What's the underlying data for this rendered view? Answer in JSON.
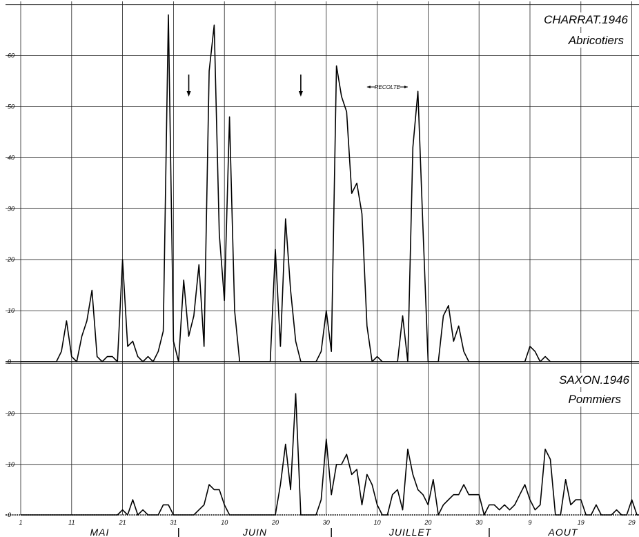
{
  "chart_data": [
    {
      "type": "line",
      "title": "CHARRAT.1946",
      "subtitle": "Abricotiers",
      "x_start": 1,
      "x_tick_labels": [
        "1",
        "11",
        "21",
        "31",
        "10",
        "20",
        "30",
        "10",
        "20",
        "30",
        "9",
        "19",
        "29"
      ],
      "months": [
        "MAI",
        "JUIN",
        "JUILLET",
        "AOUT"
      ],
      "y_ticks": [
        0,
        10,
        20,
        30,
        40,
        50,
        60
      ],
      "ylim": [
        0,
        70
      ],
      "grid": true,
      "annotations": {
        "arrow_days": [
          34,
          56
        ],
        "harvest_label": "RECOLTE",
        "harvest_range": [
          69,
          77
        ]
      },
      "values": [
        0,
        0,
        0,
        0,
        0,
        0,
        0,
        0,
        2,
        8,
        1,
        0,
        5,
        8,
        14,
        1,
        0,
        1,
        1,
        0,
        20,
        3,
        4,
        1,
        0,
        1,
        0,
        2,
        6,
        68,
        4,
        0,
        16,
        5,
        9,
        19,
        3,
        57,
        66,
        25,
        12,
        48,
        10,
        0,
        0,
        0,
        0,
        0,
        0,
        0,
        22,
        3,
        28,
        14,
        4,
        0,
        0,
        0,
        0,
        2,
        10,
        2,
        58,
        52,
        49,
        33,
        35,
        29,
        7,
        0,
        1,
        0,
        0,
        0,
        0,
        9,
        0,
        42,
        53,
        26,
        0,
        0,
        0,
        9,
        11,
        4,
        7,
        2,
        0,
        0,
        0,
        0,
        0,
        0,
        0,
        0,
        0,
        0,
        0,
        0,
        3,
        2,
        0,
        1,
        0,
        0,
        0,
        0,
        0,
        0,
        0,
        0,
        0,
        0,
        0,
        0,
        0,
        0,
        0,
        0,
        0
      ]
    },
    {
      "type": "line",
      "title": "SAXON.1946",
      "subtitle": "Pommiers",
      "x_start": 1,
      "x_tick_labels": [
        "1",
        "11",
        "21",
        "31",
        "10",
        "20",
        "30",
        "10",
        "20",
        "30",
        "9",
        "19",
        "29"
      ],
      "months": [
        "MAI",
        "JUIN",
        "JUILLET",
        "AOUT"
      ],
      "y_ticks": [
        0,
        10,
        20
      ],
      "ylim": [
        0,
        30
      ],
      "grid": true,
      "values": [
        0,
        0,
        0,
        0,
        0,
        0,
        0,
        0,
        0,
        0,
        0,
        0,
        0,
        0,
        0,
        0,
        0,
        0,
        0,
        0,
        1,
        0,
        3,
        0,
        1,
        0,
        0,
        0,
        2,
        2,
        0,
        0,
        0,
        0,
        0,
        1,
        2,
        6,
        5,
        5,
        2,
        0,
        0,
        0,
        0,
        0,
        0,
        0,
        0,
        0,
        0,
        6,
        14,
        5,
        24,
        0,
        0,
        0,
        0,
        3,
        15,
        4,
        10,
        10,
        12,
        8,
        9,
        2,
        8,
        6,
        2,
        0,
        0,
        4,
        5,
        1,
        13,
        8,
        5,
        4,
        2,
        7,
        0,
        2,
        3,
        4,
        4,
        6,
        4,
        4,
        4,
        0,
        2,
        2,
        1,
        2,
        1,
        2,
        4,
        6,
        3,
        1,
        2,
        13,
        11,
        0,
        0,
        7,
        2,
        3,
        3,
        0,
        0,
        2,
        0,
        0,
        0,
        1,
        0,
        0,
        3,
        0,
        0
      ]
    }
  ]
}
